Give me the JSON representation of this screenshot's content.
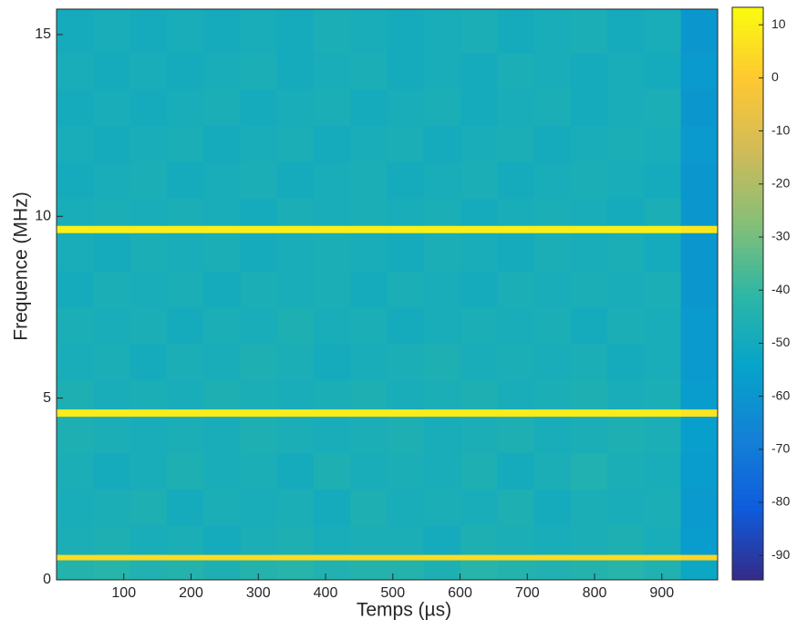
{
  "chart_data": {
    "type": "heatmap",
    "xlabel": "Temps (µs)",
    "ylabel": "Frequence (MHz)",
    "colormap": "parula",
    "x_edges": [
      0,
      54.6,
      109.2,
      163.8,
      218.4,
      273,
      327.6,
      382.2,
      436.8,
      491.4,
      546,
      600.6,
      655.2,
      709.8,
      764.4,
      819,
      873.6,
      928.2,
      983
    ],
    "y_edges": [
      0,
      0.55,
      0.7,
      1.5,
      2.5,
      3.5,
      4.5,
      4.7,
      5.5,
      6.5,
      7.5,
      8.5,
      9.55,
      9.75,
      10.5,
      11.5,
      12.5,
      13.5,
      14.5,
      15.7
    ],
    "values": [
      [
        -44,
        -43,
        -45,
        -44,
        -46,
        -44,
        -43,
        -45,
        -44,
        -44,
        -46,
        -43,
        -44,
        -45,
        -44,
        -43,
        -45,
        -52
      ],
      [
        5,
        5,
        5,
        5,
        5,
        5,
        5,
        5,
        5,
        5,
        5,
        5,
        5,
        5,
        5,
        5,
        5,
        3
      ],
      [
        -47,
        -46,
        -48,
        -47,
        -49,
        -47,
        -46,
        -48,
        -47,
        -47,
        -49,
        -46,
        -47,
        -48,
        -47,
        -46,
        -48,
        -57
      ],
      [
        -48,
        -47,
        -46,
        -49,
        -47,
        -48,
        -47,
        -49,
        -46,
        -48,
        -47,
        -48,
        -46,
        -49,
        -47,
        -48,
        -47,
        -58
      ],
      [
        -47,
        -49,
        -48,
        -46,
        -48,
        -47,
        -49,
        -46,
        -48,
        -47,
        -48,
        -46,
        -49,
        -47,
        -45,
        -47,
        -48,
        -57
      ],
      [
        -46,
        -47,
        -48,
        -47,
        -48,
        -46,
        -47,
        -48,
        -47,
        -46,
        -48,
        -47,
        -46,
        -48,
        -47,
        -46,
        -47,
        -56
      ],
      [
        9,
        9,
        9,
        9,
        9,
        9,
        9,
        9,
        9,
        9,
        9,
        9,
        9,
        9,
        9,
        9,
        9,
        7
      ],
      [
        -46,
        -48,
        -47,
        -48,
        -46,
        -47,
        -48,
        -47,
        -46,
        -48,
        -47,
        -46,
        -48,
        -47,
        -46,
        -48,
        -47,
        -57
      ],
      [
        -48,
        -47,
        -49,
        -47,
        -48,
        -46,
        -47,
        -49,
        -48,
        -47,
        -46,
        -48,
        -47,
        -48,
        -47,
        -49,
        -48,
        -58
      ],
      [
        -47,
        -48,
        -47,
        -49,
        -47,
        -48,
        -46,
        -48,
        -47,
        -49,
        -48,
        -47,
        -48,
        -47,
        -49,
        -47,
        -48,
        -58
      ],
      [
        -49,
        -47,
        -48,
        -47,
        -49,
        -47,
        -48,
        -47,
        -49,
        -47,
        -48,
        -49,
        -47,
        -48,
        -47,
        -48,
        -47,
        -59
      ],
      [
        -48,
        -49,
        -47,
        -48,
        -47,
        -49,
        -48,
        -47,
        -48,
        -49,
        -47,
        -48,
        -49,
        -47,
        -48,
        -47,
        -49,
        -59
      ],
      [
        10,
        10,
        10,
        10,
        10,
        10,
        10,
        10,
        10,
        10,
        10,
        10,
        10,
        10,
        10,
        10,
        10,
        8
      ],
      [
        -48,
        -47,
        -48,
        -47,
        -48,
        -49,
        -47,
        -48,
        -47,
        -48,
        -47,
        -49,
        -48,
        -47,
        -48,
        -49,
        -47,
        -59
      ],
      [
        -49,
        -48,
        -47,
        -49,
        -48,
        -47,
        -49,
        -48,
        -47,
        -49,
        -48,
        -47,
        -49,
        -48,
        -47,
        -48,
        -49,
        -59
      ],
      [
        -48,
        -49,
        -48,
        -47,
        -49,
        -48,
        -47,
        -49,
        -48,
        -47,
        -49,
        -48,
        -47,
        -49,
        -48,
        -47,
        -48,
        -58
      ],
      [
        -49,
        -48,
        -49,
        -48,
        -47,
        -49,
        -48,
        -47,
        -49,
        -48,
        -47,
        -49,
        -48,
        -47,
        -49,
        -48,
        -47,
        -59
      ],
      [
        -48,
        -49,
        -48,
        -49,
        -48,
        -47,
        -49,
        -48,
        -47,
        -49,
        -48,
        -49,
        -47,
        -48,
        -49,
        -48,
        -49,
        -58
      ],
      [
        -49,
        -48,
        -49,
        -48,
        -49,
        -48,
        -49,
        -47,
        -48,
        -49,
        -48,
        -47,
        -49,
        -48,
        -47,
        -49,
        -48,
        -59
      ]
    ],
    "xlim": [
      0,
      983
    ],
    "ylim": [
      0,
      15.7
    ],
    "xticks": [
      100,
      200,
      300,
      400,
      500,
      600,
      700,
      800,
      900
    ],
    "yticks": [
      0,
      5,
      10,
      15
    ],
    "clim": [
      -94.6,
      13.3
    ],
    "cticks": [
      10,
      0,
      -10,
      -20,
      -30,
      -40,
      -50,
      -60,
      -70,
      -80,
      -90
    ]
  }
}
